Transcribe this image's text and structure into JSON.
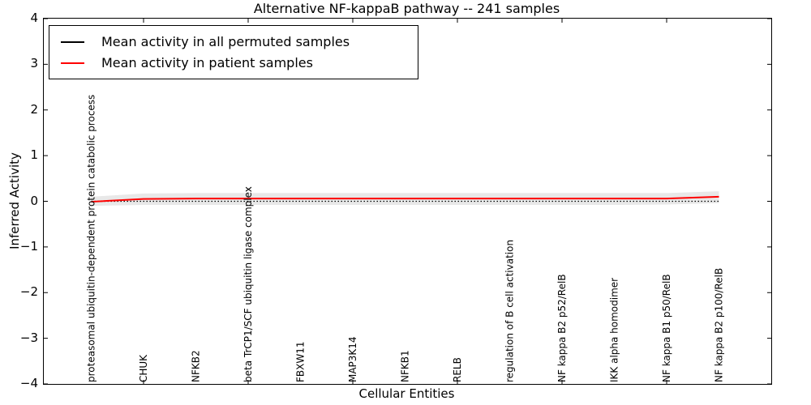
{
  "chart_data": {
    "type": "line",
    "title": "Alternative NF-kappaB pathway -- 241 samples",
    "xlabel": "Cellular Entities",
    "ylabel": "Inferred Activity",
    "ylim": [
      -4,
      4
    ],
    "yticks": [
      4,
      3,
      2,
      1,
      0,
      -1,
      -2,
      -3,
      -4
    ],
    "grid": false,
    "legend_position": "upper left",
    "categories": [
      "proteasomal ubiquitin-dependent protein catabolic process",
      "CHUK",
      "NFKB2",
      "beta TrCP1/SCF ubiquitin ligase complex",
      "FBXW11",
      "MAP3K14",
      "NFKB1",
      "RELB",
      "regulation of B cell activation",
      "NF kappa B2 p52/RelB",
      "IKK alpha homodimer",
      "NF kappa B1 p50/RelB",
      "NF kappa B2 p100/RelB"
    ],
    "xtick_indices": [
      1,
      3,
      5,
      7,
      9,
      11
    ],
    "series": [
      {
        "name": "Mean activity in all permuted samples",
        "color": "#000000",
        "style": "dotted",
        "values": [
          0,
          0,
          0,
          0,
          0,
          0,
          0,
          0,
          0,
          0,
          0,
          0,
          0
        ]
      },
      {
        "name": "Mean activity in patient samples",
        "color": "#ff0000",
        "style": "solid",
        "values": [
          -0.01,
          0.05,
          0.06,
          0.06,
          0.06,
          0.06,
          0.06,
          0.06,
          0.06,
          0.06,
          0.06,
          0.06,
          0.1
        ]
      }
    ],
    "band": {
      "color": "#e8e8e8",
      "upper": [
        0.1,
        0.17,
        0.18,
        0.18,
        0.18,
        0.18,
        0.18,
        0.18,
        0.18,
        0.18,
        0.18,
        0.18,
        0.22
      ],
      "lower": [
        -0.1,
        -0.08,
        -0.08,
        -0.08,
        -0.08,
        -0.08,
        -0.08,
        -0.08,
        -0.08,
        -0.08,
        -0.08,
        -0.07,
        -0.04
      ]
    }
  }
}
